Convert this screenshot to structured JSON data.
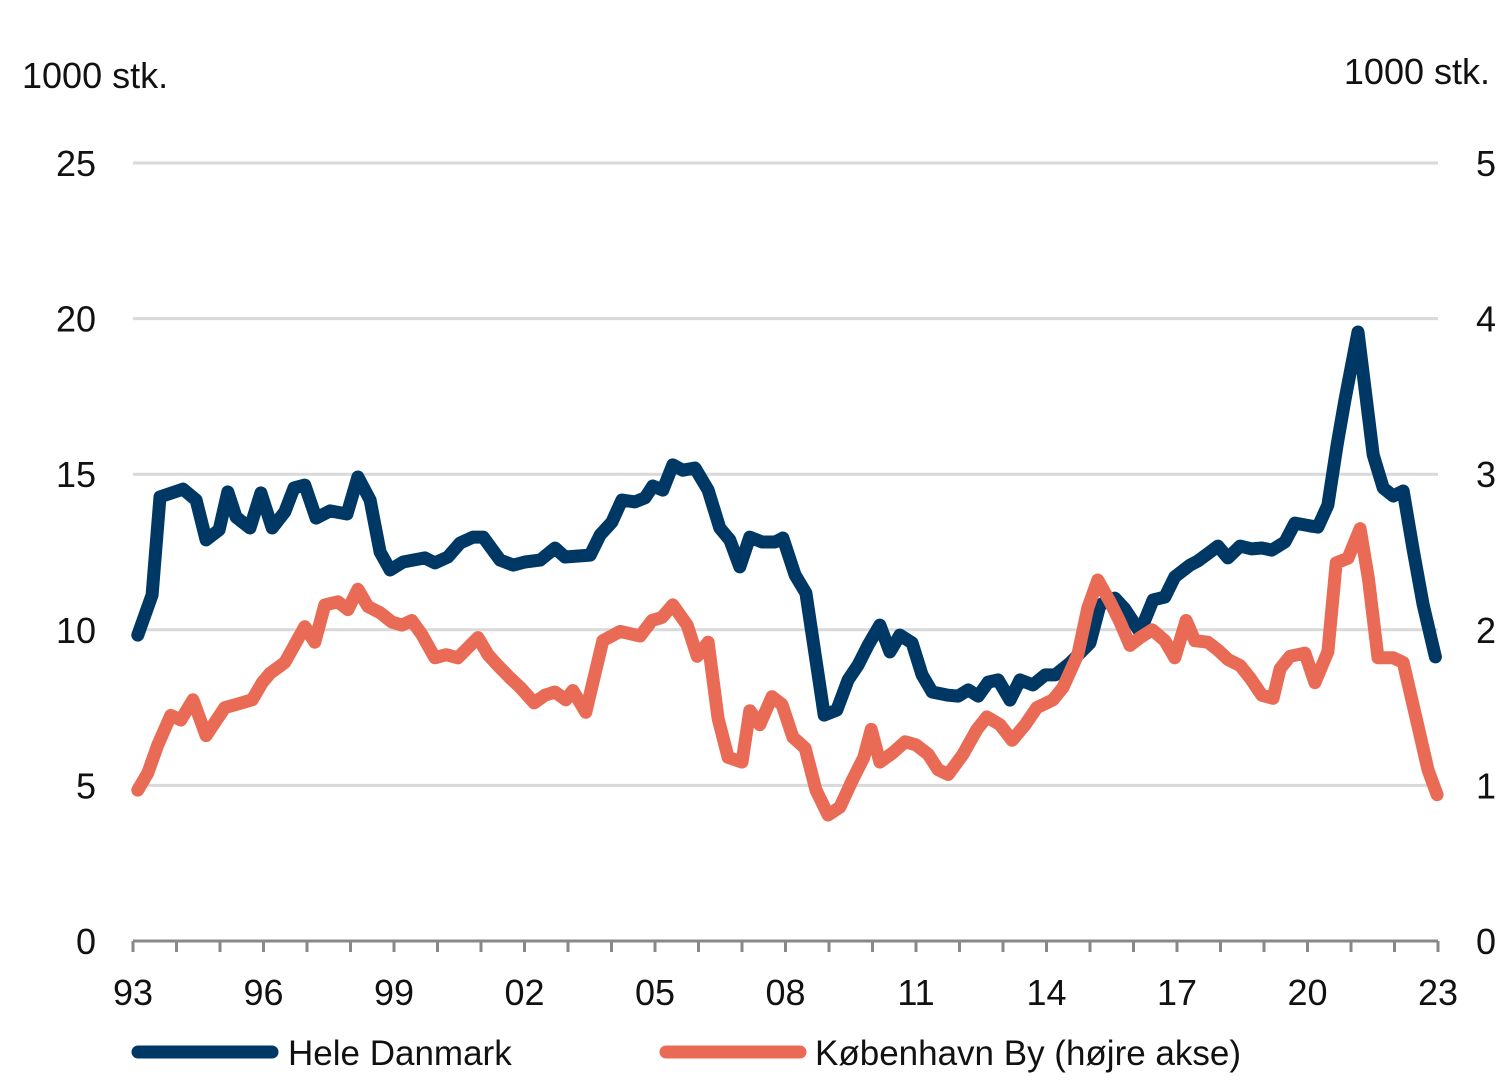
{
  "chart_data": {
    "type": "line",
    "left_axis": {
      "label": "1000 stk.",
      "range": [
        0,
        25
      ],
      "ticks": [
        0,
        5,
        10,
        15,
        20,
        25
      ]
    },
    "right_axis": {
      "label": "1000 stk.",
      "range": [
        0,
        5
      ],
      "ticks": [
        0,
        1,
        2,
        3,
        4,
        5
      ]
    },
    "x_axis": {
      "range": [
        1993,
        2023
      ],
      "tick_years": [
        1993,
        1994,
        1995,
        1996,
        1997,
        1998,
        1999,
        2000,
        2001,
        2002,
        2003,
        2004,
        2005,
        2006,
        2007,
        2008,
        2009,
        2010,
        2011,
        2012,
        2013,
        2014,
        2015,
        2016,
        2017,
        2018,
        2019,
        2020,
        2021,
        2022,
        2023
      ],
      "labels": [
        {
          "year": 1993,
          "text": "93"
        },
        {
          "year": 1996,
          "text": "96"
        },
        {
          "year": 1999,
          "text": "99"
        },
        {
          "year": 2002,
          "text": "02"
        },
        {
          "year": 2005,
          "text": "05"
        },
        {
          "year": 2008,
          "text": "08"
        },
        {
          "year": 2011,
          "text": "11"
        },
        {
          "year": 2014,
          "text": "14"
        },
        {
          "year": 2017,
          "text": "17"
        },
        {
          "year": 2020,
          "text": "20"
        },
        {
          "year": 2023,
          "text": "23"
        }
      ]
    },
    "grid": true,
    "legend_position": "bottom",
    "series": [
      {
        "name": "Hele Danmark",
        "axis": "left",
        "color": "#003865",
        "points": [
          [
            1993.11,
            9.83
          ],
          [
            1993.44,
            11.12
          ],
          [
            1993.62,
            14.27
          ],
          [
            1994.15,
            14.52
          ],
          [
            1994.45,
            14.17
          ],
          [
            1994.68,
            12.89
          ],
          [
            1994.98,
            13.21
          ],
          [
            1995.18,
            14.43
          ],
          [
            1995.37,
            13.62
          ],
          [
            1995.69,
            13.27
          ],
          [
            1995.94,
            14.4
          ],
          [
            1996.2,
            13.27
          ],
          [
            1996.49,
            13.79
          ],
          [
            1996.7,
            14.56
          ],
          [
            1996.95,
            14.65
          ],
          [
            1997.21,
            13.59
          ],
          [
            1997.53,
            13.82
          ],
          [
            1997.92,
            13.72
          ],
          [
            1998.17,
            14.91
          ],
          [
            1998.45,
            14.17
          ],
          [
            1998.68,
            12.5
          ],
          [
            1998.91,
            11.92
          ],
          [
            1999.21,
            12.18
          ],
          [
            1999.71,
            12.31
          ],
          [
            1999.94,
            12.15
          ],
          [
            2000.24,
            12.34
          ],
          [
            2000.52,
            12.79
          ],
          [
            2000.82,
            12.98
          ],
          [
            2001.05,
            12.98
          ],
          [
            2001.44,
            12.24
          ],
          [
            2001.74,
            12.08
          ],
          [
            2002.01,
            12.18
          ],
          [
            2002.36,
            12.24
          ],
          [
            2002.7,
            12.63
          ],
          [
            2002.93,
            12.34
          ],
          [
            2003.51,
            12.4
          ],
          [
            2003.74,
            13.05
          ],
          [
            2004.01,
            13.46
          ],
          [
            2004.24,
            14.17
          ],
          [
            2004.54,
            14.11
          ],
          [
            2004.77,
            14.24
          ],
          [
            2004.95,
            14.62
          ],
          [
            2005.18,
            14.49
          ],
          [
            2005.41,
            15.3
          ],
          [
            2005.64,
            15.13
          ],
          [
            2005.92,
            15.2
          ],
          [
            2006.22,
            14.49
          ],
          [
            2006.49,
            13.27
          ],
          [
            2006.72,
            12.89
          ],
          [
            2006.95,
            12.02
          ],
          [
            2007.18,
            12.98
          ],
          [
            2007.46,
            12.82
          ],
          [
            2007.76,
            12.82
          ],
          [
            2007.94,
            12.95
          ],
          [
            2008.22,
            11.76
          ],
          [
            2008.47,
            11.18
          ],
          [
            2008.89,
            7.26
          ],
          [
            2009.18,
            7.42
          ],
          [
            2009.44,
            8.39
          ],
          [
            2009.67,
            8.87
          ],
          [
            2009.9,
            9.51
          ],
          [
            2010.17,
            10.15
          ],
          [
            2010.4,
            9.29
          ],
          [
            2010.63,
            9.83
          ],
          [
            2010.91,
            9.58
          ],
          [
            2011.14,
            8.55
          ],
          [
            2011.37,
            8.0
          ],
          [
            2011.74,
            7.9
          ],
          [
            2011.97,
            7.87
          ],
          [
            2012.2,
            8.07
          ],
          [
            2012.43,
            7.87
          ],
          [
            2012.66,
            8.32
          ],
          [
            2012.89,
            8.39
          ],
          [
            2013.16,
            7.74
          ],
          [
            2013.39,
            8.39
          ],
          [
            2013.69,
            8.23
          ],
          [
            2013.97,
            8.55
          ],
          [
            2014.2,
            8.55
          ],
          [
            2014.54,
            8.93
          ],
          [
            2015.0,
            9.58
          ],
          [
            2015.23,
            10.8
          ],
          [
            2015.57,
            11.02
          ],
          [
            2015.8,
            10.67
          ],
          [
            2016.15,
            9.93
          ],
          [
            2016.45,
            10.96
          ],
          [
            2016.72,
            11.05
          ],
          [
            2016.95,
            11.7
          ],
          [
            2017.3,
            12.08
          ],
          [
            2017.48,
            12.21
          ],
          [
            2017.76,
            12.5
          ],
          [
            2017.94,
            12.69
          ],
          [
            2018.17,
            12.31
          ],
          [
            2018.45,
            12.69
          ],
          [
            2018.72,
            12.6
          ],
          [
            2018.95,
            12.63
          ],
          [
            2019.18,
            12.56
          ],
          [
            2019.48,
            12.82
          ],
          [
            2019.71,
            13.43
          ],
          [
            2020.06,
            13.34
          ],
          [
            2020.24,
            13.3
          ],
          [
            2020.47,
            14.01
          ],
          [
            2020.68,
            15.94
          ],
          [
            2020.86,
            17.38
          ],
          [
            2021.16,
            19.57
          ],
          [
            2021.51,
            15.62
          ],
          [
            2021.74,
            14.56
          ],
          [
            2021.97,
            14.3
          ],
          [
            2022.2,
            14.46
          ],
          [
            2022.43,
            12.56
          ],
          [
            2022.66,
            10.8
          ],
          [
            2022.94,
            9.13
          ]
        ]
      },
      {
        "name": "København By (højre akse)",
        "axis": "right",
        "color": "#E96B55",
        "points": [
          [
            1993.11,
            0.97
          ],
          [
            1993.34,
            1.08
          ],
          [
            1993.57,
            1.26
          ],
          [
            1993.87,
            1.45
          ],
          [
            1994.1,
            1.42
          ],
          [
            1994.38,
            1.55
          ],
          [
            1994.68,
            1.32
          ],
          [
            1995.11,
            1.5
          ],
          [
            1995.37,
            1.52
          ],
          [
            1995.74,
            1.55
          ],
          [
            1995.97,
            1.66
          ],
          [
            1996.15,
            1.72
          ],
          [
            1996.49,
            1.79
          ],
          [
            1996.95,
            2.02
          ],
          [
            1997.18,
            1.92
          ],
          [
            1997.41,
            2.16
          ],
          [
            1997.71,
            2.18
          ],
          [
            1997.94,
            2.13
          ],
          [
            1998.17,
            2.26
          ],
          [
            1998.4,
            2.15
          ],
          [
            1998.68,
            2.11
          ],
          [
            1998.95,
            2.05
          ],
          [
            1999.18,
            2.03
          ],
          [
            1999.41,
            2.06
          ],
          [
            1999.64,
            1.97
          ],
          [
            1999.94,
            1.82
          ],
          [
            2000.2,
            1.84
          ],
          [
            2000.47,
            1.82
          ],
          [
            2000.93,
            1.95
          ],
          [
            2001.16,
            1.84
          ],
          [
            2001.39,
            1.77
          ],
          [
            2001.67,
            1.69
          ],
          [
            2001.9,
            1.63
          ],
          [
            2002.22,
            1.53
          ],
          [
            2002.47,
            1.58
          ],
          [
            2002.7,
            1.6
          ],
          [
            2002.95,
            1.55
          ],
          [
            2003.11,
            1.61
          ],
          [
            2003.41,
            1.47
          ],
          [
            2003.8,
            1.93
          ],
          [
            2004.2,
            1.99
          ],
          [
            2004.66,
            1.96
          ],
          [
            2004.93,
            2.06
          ],
          [
            2005.16,
            2.08
          ],
          [
            2005.41,
            2.16
          ],
          [
            2005.74,
            2.03
          ],
          [
            2005.97,
            1.83
          ],
          [
            2006.22,
            1.92
          ],
          [
            2006.45,
            1.43
          ],
          [
            2006.68,
            1.18
          ],
          [
            2007.0,
            1.15
          ],
          [
            2007.18,
            1.48
          ],
          [
            2007.41,
            1.39
          ],
          [
            2007.69,
            1.57
          ],
          [
            2007.92,
            1.52
          ],
          [
            2008.17,
            1.31
          ],
          [
            2008.45,
            1.24
          ],
          [
            2008.7,
            0.97
          ],
          [
            2008.98,
            0.81
          ],
          [
            2009.25,
            0.86
          ],
          [
            2009.53,
            1.03
          ],
          [
            2009.8,
            1.18
          ],
          [
            2009.97,
            1.36
          ],
          [
            2010.17,
            1.15
          ],
          [
            2010.47,
            1.21
          ],
          [
            2010.75,
            1.28
          ],
          [
            2011.0,
            1.26
          ],
          [
            2011.28,
            1.2
          ],
          [
            2011.51,
            1.1
          ],
          [
            2011.74,
            1.07
          ],
          [
            2012.08,
            1.2
          ],
          [
            2012.4,
            1.36
          ],
          [
            2012.63,
            1.44
          ],
          [
            2012.93,
            1.39
          ],
          [
            2013.21,
            1.29
          ],
          [
            2013.51,
            1.39
          ],
          [
            2013.78,
            1.5
          ],
          [
            2014.15,
            1.55
          ],
          [
            2014.38,
            1.63
          ],
          [
            2014.72,
            1.84
          ],
          [
            2014.95,
            2.14
          ],
          [
            2015.18,
            2.32
          ],
          [
            2015.46,
            2.18
          ],
          [
            2015.69,
            2.05
          ],
          [
            2015.92,
            1.9
          ],
          [
            2016.15,
            1.95
          ],
          [
            2016.43,
            2.0
          ],
          [
            2016.72,
            1.93
          ],
          [
            2016.95,
            1.82
          ],
          [
            2017.21,
            2.06
          ],
          [
            2017.41,
            1.93
          ],
          [
            2017.71,
            1.92
          ],
          [
            2017.94,
            1.87
          ],
          [
            2018.17,
            1.81
          ],
          [
            2018.45,
            1.77
          ],
          [
            2018.68,
            1.69
          ],
          [
            2018.95,
            1.58
          ],
          [
            2019.21,
            1.56
          ],
          [
            2019.37,
            1.75
          ],
          [
            2019.6,
            1.83
          ],
          [
            2019.94,
            1.85
          ],
          [
            2020.17,
            1.66
          ],
          [
            2020.47,
            1.86
          ],
          [
            2020.66,
            2.43
          ],
          [
            2020.93,
            2.46
          ],
          [
            2021.21,
            2.65
          ],
          [
            2021.4,
            2.33
          ],
          [
            2021.62,
            1.82
          ],
          [
            2021.97,
            1.82
          ],
          [
            2022.2,
            1.79
          ],
          [
            2022.54,
            1.38
          ],
          [
            2022.77,
            1.1
          ],
          [
            2022.98,
            0.94
          ]
        ]
      }
    ]
  }
}
